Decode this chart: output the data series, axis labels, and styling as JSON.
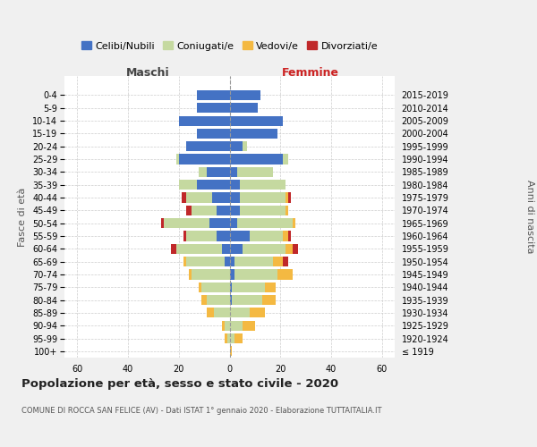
{
  "age_groups": [
    "100+",
    "95-99",
    "90-94",
    "85-89",
    "80-84",
    "75-79",
    "70-74",
    "65-69",
    "60-64",
    "55-59",
    "50-54",
    "45-49",
    "40-44",
    "35-39",
    "30-34",
    "25-29",
    "20-24",
    "15-19",
    "10-14",
    "5-9",
    "0-4"
  ],
  "birth_years": [
    "≤ 1919",
    "1920-1924",
    "1925-1929",
    "1930-1934",
    "1935-1939",
    "1940-1944",
    "1945-1949",
    "1950-1954",
    "1955-1959",
    "1960-1964",
    "1965-1969",
    "1970-1974",
    "1975-1979",
    "1980-1984",
    "1985-1989",
    "1990-1994",
    "1995-1999",
    "2000-2004",
    "2005-2009",
    "2010-2014",
    "2015-2019"
  ],
  "male_celibi": [
    0,
    0,
    0,
    0,
    0,
    0,
    0,
    2,
    3,
    5,
    8,
    5,
    7,
    13,
    9,
    20,
    17,
    13,
    20,
    13,
    13
  ],
  "male_coniugati": [
    0,
    1,
    2,
    6,
    9,
    11,
    15,
    15,
    18,
    12,
    18,
    10,
    10,
    7,
    3,
    1,
    0,
    0,
    0,
    0,
    0
  ],
  "male_vedovi": [
    0,
    1,
    1,
    3,
    2,
    1,
    1,
    1,
    0,
    0,
    0,
    0,
    0,
    0,
    0,
    0,
    0,
    0,
    0,
    0,
    0
  ],
  "male_divorziati": [
    0,
    0,
    0,
    0,
    0,
    0,
    0,
    0,
    2,
    1,
    1,
    2,
    2,
    0,
    0,
    0,
    0,
    0,
    0,
    0,
    0
  ],
  "female_celibi": [
    0,
    0,
    0,
    0,
    1,
    1,
    2,
    2,
    5,
    8,
    3,
    4,
    4,
    4,
    3,
    21,
    5,
    19,
    21,
    11,
    12
  ],
  "female_coniugati": [
    0,
    2,
    5,
    8,
    12,
    13,
    17,
    15,
    17,
    13,
    22,
    18,
    18,
    18,
    14,
    2,
    2,
    0,
    0,
    0,
    0
  ],
  "female_vedovi": [
    1,
    3,
    5,
    6,
    5,
    4,
    6,
    4,
    3,
    2,
    1,
    1,
    1,
    0,
    0,
    0,
    0,
    0,
    0,
    0,
    0
  ],
  "female_divorziati": [
    0,
    0,
    0,
    0,
    0,
    0,
    0,
    2,
    2,
    1,
    0,
    0,
    1,
    0,
    0,
    0,
    0,
    0,
    0,
    0,
    0
  ],
  "color_celibi": "#4472c4",
  "color_coniugati": "#c5d9a0",
  "color_vedovi": "#f4b942",
  "color_divorziati": "#c0282a",
  "title": "Popolazione per età, sesso e stato civile - 2020",
  "subtitle": "COMUNE DI ROCCA SAN FELICE (AV) - Dati ISTAT 1° gennaio 2020 - Elaborazione TUTTAITALIA.IT",
  "xlabel_left": "Maschi",
  "xlabel_right": "Femmine",
  "ylabel_left": "Fasce di età",
  "ylabel_right": "Anni di nascita",
  "xlim": 65,
  "background_color": "#f0f0f0",
  "plot_background": "#ffffff"
}
